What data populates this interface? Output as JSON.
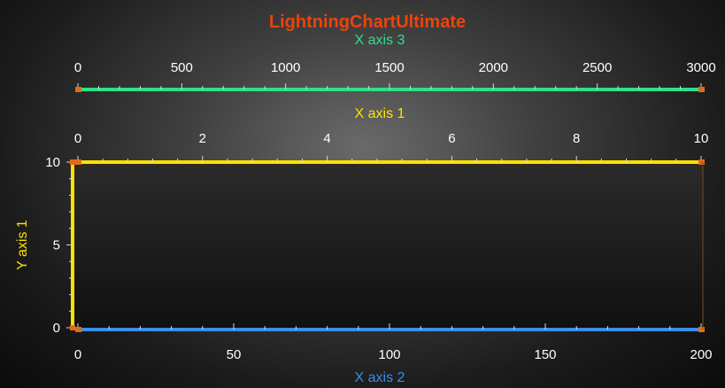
{
  "window": {
    "background_center": "#6a6a6a",
    "background_edge": "#0b0b0b"
  },
  "chart_title": {
    "text": "LightningChartUltimate",
    "color": "#e8450e"
  },
  "chart_data": {
    "type": "line",
    "title": "LightningChartUltimate",
    "series": [],
    "legend": "none",
    "grid": false,
    "x_axes": [
      {
        "id": "x1",
        "label": "X axis 1",
        "color": "#ffe100",
        "position": "top",
        "range": [
          0,
          10
        ],
        "ticks": [
          0,
          2,
          4,
          6,
          8,
          10
        ],
        "tick_labels": [
          "0",
          "2",
          "4",
          "6",
          "8",
          "10"
        ],
        "minor_per_major": 4
      },
      {
        "id": "x2",
        "label": "X axis 2",
        "color": "#3a8fe6",
        "position": "bottom",
        "range": [
          0,
          200
        ],
        "ticks": [
          0,
          50,
          100,
          150,
          200
        ],
        "tick_labels": [
          "0",
          "50",
          "100",
          "150",
          "200"
        ],
        "minor_per_major": 4
      },
      {
        "id": "x3",
        "label": "X axis 3",
        "color": "#2ee08c",
        "position": "top",
        "range": [
          0,
          3000
        ],
        "ticks": [
          0,
          500,
          1000,
          1500,
          2000,
          2500,
          3000
        ],
        "tick_labels": [
          "0",
          "500",
          "1000",
          "1500",
          "2000",
          "2500",
          "3000"
        ],
        "minor_per_major": 4
      }
    ],
    "y_axes": [
      {
        "id": "y1",
        "label": "Y axis 1",
        "color": "#ffe100",
        "position": "left",
        "range": [
          0,
          10
        ],
        "ticks": [
          0,
          5,
          10
        ],
        "tick_labels": [
          "0",
          "5",
          "10"
        ],
        "minor_per_major": 4
      }
    ],
    "colors": {
      "plot_area_top": "#2b2b2b",
      "plot_area_bottom": "#101010",
      "axis_end_marker": "#e06a1a",
      "tick_label": "#ffffff"
    }
  }
}
